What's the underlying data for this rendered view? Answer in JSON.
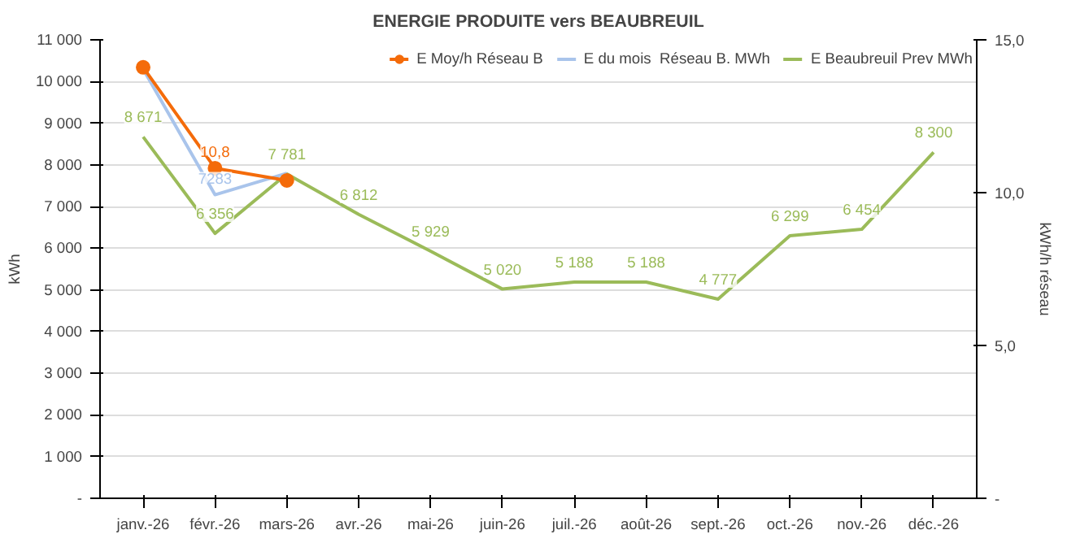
{
  "chart_data": {
    "type": "line",
    "title": "ENERGIE PRODUITE vers BEAUBREUIL",
    "ylabel": "kWh",
    "y2label": "kWh/h réseau",
    "categories": [
      "janv.-26",
      "févr.-26",
      "mars-26",
      "avr.-26",
      "mai-26",
      "juin-26",
      "juil.-26",
      "août-26",
      "sept.-26",
      "oct.-26",
      "nov.-26",
      "déc.-26"
    ],
    "series": [
      {
        "name": "E Beaubreuil Prev MWh",
        "color": "#9bbb59",
        "values": [
          8671,
          6356,
          7781,
          6812,
          5929,
          5020,
          5188,
          5188,
          4777,
          6299,
          6454,
          8300
        ],
        "value_labels": [
          "8 671",
          "6 356",
          "7 781",
          "6 812",
          "5 929",
          "5 020",
          "5 188",
          "5 188",
          "4 777",
          "6 299",
          "6 454",
          "8 300"
        ],
        "marker": "none"
      },
      {
        "name": "E du mois  Réseau B. MWh",
        "color": "#a9c4eb",
        "values": [
          10300,
          7283,
          7800,
          null,
          null,
          null,
          null,
          null,
          null,
          null,
          null,
          null
        ],
        "value_labels": [
          null,
          "7283",
          null,
          null,
          null,
          null,
          null,
          null,
          null,
          null,
          null,
          null
        ],
        "marker": "none"
      },
      {
        "name": "E Moy/h Réseau B",
        "color": "#f46b0a",
        "axis": "y2",
        "values": [
          14.1,
          10.8,
          10.4,
          null,
          null,
          null,
          null,
          null,
          null,
          null,
          null,
          null
        ],
        "value_labels": [
          null,
          "10,8",
          null,
          null,
          null,
          null,
          null,
          null,
          null,
          null,
          null,
          null
        ],
        "marker": "circle"
      }
    ],
    "ylim": [
      0,
      11000
    ],
    "yticks": [
      {
        "value": 0,
        "label": "-"
      },
      {
        "value": 1000,
        "label": "1 000"
      },
      {
        "value": 2000,
        "label": "2 000"
      },
      {
        "value": 3000,
        "label": "3 000"
      },
      {
        "value": 4000,
        "label": "4 000"
      },
      {
        "value": 5000,
        "label": "5 000"
      },
      {
        "value": 6000,
        "label": "6 000"
      },
      {
        "value": 7000,
        "label": "7 000"
      },
      {
        "value": 8000,
        "label": "8 000"
      },
      {
        "value": 9000,
        "label": "9 000"
      },
      {
        "value": 10000,
        "label": "10 000"
      },
      {
        "value": 11000,
        "label": "11 000"
      }
    ],
    "y2lim": [
      0,
      15
    ],
    "y2ticks": [
      {
        "value": 0,
        "label": "-"
      },
      {
        "value": 5,
        "label": "5,0"
      },
      {
        "value": 10,
        "label": "10,0"
      },
      {
        "value": 15,
        "label": "15,0"
      }
    ],
    "grid": "y",
    "legend": "top right"
  }
}
